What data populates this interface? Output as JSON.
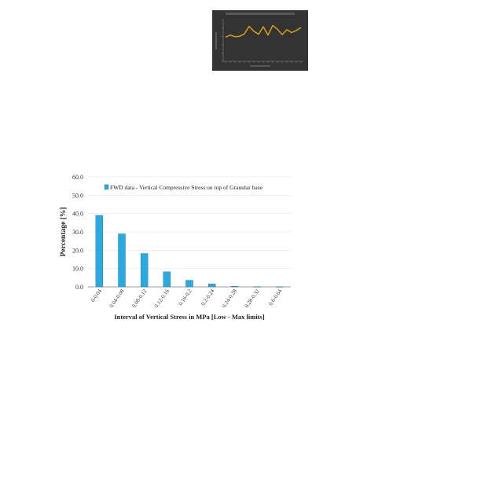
{
  "chart_data": [
    {
      "type": "line",
      "title": "",
      "xlabel": "",
      "ylabel": "",
      "colors": {
        "background": "#333333",
        "line": "#d4a017",
        "axis": "#888888"
      },
      "x": [
        1,
        2,
        3,
        4,
        5,
        6,
        7,
        8,
        9,
        10,
        11,
        12,
        13,
        14,
        15,
        16,
        17
      ],
      "series": [
        {
          "values": [
            5.8,
            6.3,
            5.9,
            6.0,
            6.6,
            8.4,
            7.2,
            6.5,
            8.3,
            6.3,
            8.6,
            7.7,
            6.4,
            7.6,
            6.9,
            7.4,
            8.1
          ]
        }
      ],
      "ylim": [
        0,
        10
      ],
      "grid": false
    },
    {
      "type": "bar",
      "title": "",
      "xlabel": "Interval of Vertical Stress in MPa [Low - Max limits]",
      "ylabel": "Percentage [%]",
      "categories": [
        "0-0.04",
        "0.04-0.08",
        "0.08-0.12",
        "0.12-0.16",
        "0.16-0.2",
        "0.2-0.24",
        "0.24-0.28",
        "0.28-0.32",
        "0.6-0.64"
      ],
      "series": [
        {
          "name": "FWD data - Vertical Compressive Stress on top of Granular base",
          "values": [
            39.0,
            28.9,
            18.2,
            8.2,
            3.6,
            1.6,
            0.3,
            0.1,
            0.1
          ]
        }
      ],
      "yticks": [
        "0.0",
        "10.0",
        "20.0",
        "30.0",
        "40.0",
        "50.0",
        "60.0"
      ],
      "ylim": [
        0,
        60
      ],
      "legend_position": "top",
      "grid": true,
      "colors": {
        "bar": "#29abe2",
        "bar_edge": "#1b6f97",
        "grid": "#e6e6e6",
        "axis": "#7f7f7f"
      }
    }
  ]
}
